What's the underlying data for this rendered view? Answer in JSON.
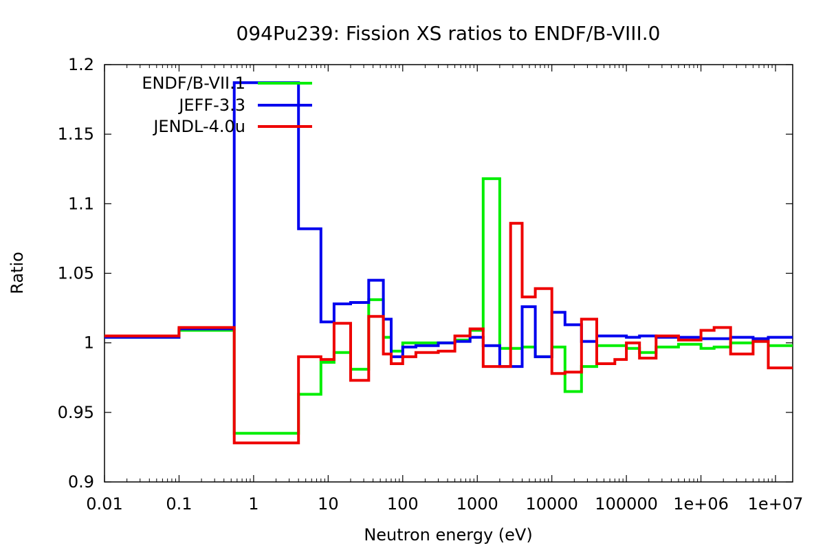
{
  "chart_data": {
    "type": "line",
    "title": "094Pu239: Fission XS ratios to ENDF/B-VIII.0",
    "xlabel": "Neutron energy (eV)",
    "ylabel": "Ratio",
    "xscale": "log",
    "xlim": [
      0.01,
      17000000
    ],
    "ylim": [
      0.9,
      1.2
    ],
    "grid": false,
    "legend_position": "top-left",
    "x_ticks": [
      0.01,
      0.1,
      1,
      10,
      100,
      1000,
      10000,
      100000,
      1000000,
      10000000
    ],
    "x_tick_labels": [
      "0.01",
      "0.1",
      "1",
      "10",
      "100",
      "1000",
      "10000",
      "100000",
      "1e+06",
      "1e+07"
    ],
    "y_ticks": [
      0.9,
      0.95,
      1.0,
      1.05,
      1.1,
      1.15,
      1.2
    ],
    "y_tick_labels": [
      "0.9",
      "0.95",
      "1",
      "1.05",
      "1.1",
      "1.15",
      "1.2"
    ],
    "series": [
      {
        "name": "ENDF/B-VII.1",
        "color": "#00ee00",
        "x": [
          0.01,
          0.1,
          0.55,
          4,
          6,
          8,
          12,
          20,
          35,
          55,
          70,
          100,
          150,
          300,
          500,
          800,
          1200,
          2000,
          2800,
          4000,
          6000,
          10000,
          15000,
          25000,
          40000,
          70000,
          100000,
          150000,
          250000,
          500000,
          1000000,
          1500000,
          2500000,
          5000000,
          8000000,
          17000000
        ],
        "y": [
          1.004,
          1.009,
          0.935,
          0.963,
          0.963,
          0.986,
          0.993,
          0.981,
          1.031,
          1.004,
          0.994,
          1.0,
          1.0,
          1.0,
          1.002,
          1.009,
          1.118,
          0.996,
          0.996,
          0.997,
          0.99,
          0.997,
          0.965,
          0.983,
          0.998,
          0.998,
          0.996,
          0.993,
          0.997,
          0.999,
          0.996,
          0.997,
          1.0,
          1.001,
          0.998,
          0.998
        ]
      },
      {
        "name": "JEFF-3.3",
        "color": "#0000ee",
        "x": [
          0.01,
          0.1,
          0.55,
          4,
          8,
          12,
          20,
          35,
          55,
          70,
          100,
          150,
          300,
          500,
          800,
          1200,
          2000,
          2800,
          4000,
          6000,
          10000,
          15000,
          25000,
          40000,
          70000,
          100000,
          150000,
          250000,
          500000,
          1000000,
          1500000,
          2500000,
          5000000,
          8000000,
          17000000
        ],
        "y": [
          1.004,
          1.01,
          1.187,
          1.082,
          1.015,
          1.028,
          1.029,
          1.045,
          1.017,
          0.99,
          0.997,
          0.998,
          1.0,
          1.001,
          1.004,
          0.998,
          0.983,
          0.983,
          1.026,
          0.99,
          1.022,
          1.013,
          1.001,
          1.005,
          1.005,
          1.004,
          1.005,
          1.004,
          1.004,
          1.003,
          1.003,
          1.004,
          1.003,
          1.004,
          1.003
        ]
      },
      {
        "name": "JENDL-4.0u",
        "color": "#ee0000",
        "x": [
          0.01,
          0.1,
          0.55,
          4,
          8,
          12,
          20,
          35,
          55,
          70,
          100,
          150,
          300,
          500,
          800,
          1200,
          2000,
          2800,
          4000,
          6000,
          10000,
          15000,
          25000,
          40000,
          70000,
          100000,
          150000,
          250000,
          500000,
          1000000,
          1500000,
          2500000,
          5000000,
          8000000,
          17000000
        ],
        "y": [
          1.005,
          1.011,
          0.928,
          0.99,
          0.988,
          1.014,
          0.973,
          1.019,
          0.992,
          0.985,
          0.99,
          0.993,
          0.994,
          1.005,
          1.01,
          0.983,
          0.983,
          1.086,
          1.033,
          1.039,
          0.978,
          0.979,
          1.017,
          0.985,
          0.988,
          1.0,
          0.989,
          1.005,
          1.002,
          1.009,
          1.011,
          0.992,
          1.001,
          0.982,
          0.982
        ]
      }
    ]
  }
}
